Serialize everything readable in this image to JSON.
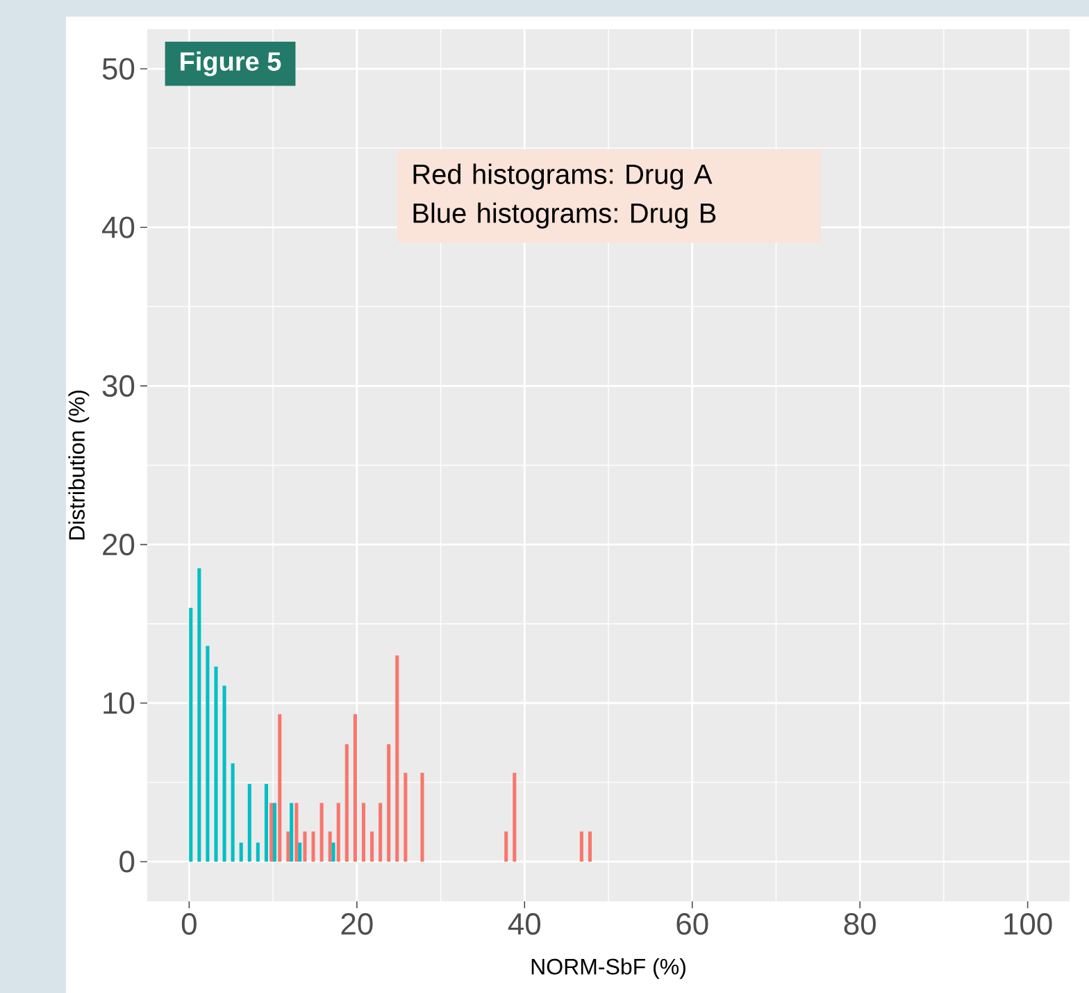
{
  "chart_data": {
    "type": "bar",
    "title": "Figure 5",
    "xlabel": "NORM-SbF (%)",
    "ylabel": "Distribution (%)",
    "annotations": [
      "Red histograms: Drug A",
      "Blue histograms: Drug B"
    ],
    "series": [
      {
        "color": "#f8766d",
        "x": [
          10,
          11,
          12,
          13,
          14,
          15,
          16,
          17,
          18,
          19,
          20,
          21,
          22,
          23,
          24,
          25,
          26,
          28,
          38,
          39,
          47,
          48
        ],
        "values": [
          3.7,
          9.3,
          1.9,
          3.7,
          1.9,
          1.9,
          3.7,
          1.9,
          3.7,
          7.4,
          9.3,
          3.7,
          1.9,
          3.7,
          7.4,
          13.0,
          5.6,
          5.6,
          1.9,
          5.6,
          1.9,
          1.9
        ]
      },
      {
        "color": "#00bfc4",
        "x": [
          0,
          1,
          2,
          3,
          4,
          5,
          6,
          7,
          8,
          9,
          10,
          12,
          13,
          17
        ],
        "values": [
          16.0,
          18.5,
          13.6,
          12.3,
          11.1,
          6.2,
          1.2,
          4.9,
          1.2,
          4.9,
          3.7,
          3.7,
          1.2,
          1.2
        ]
      }
    ],
    "xlim": [
      -5,
      105
    ],
    "ylim": [
      -2.5,
      52.5
    ],
    "xticks": [
      0,
      20,
      40,
      60,
      80,
      100
    ],
    "yticks": [
      0,
      10,
      20,
      30,
      40,
      50
    ],
    "grid": true
  }
}
